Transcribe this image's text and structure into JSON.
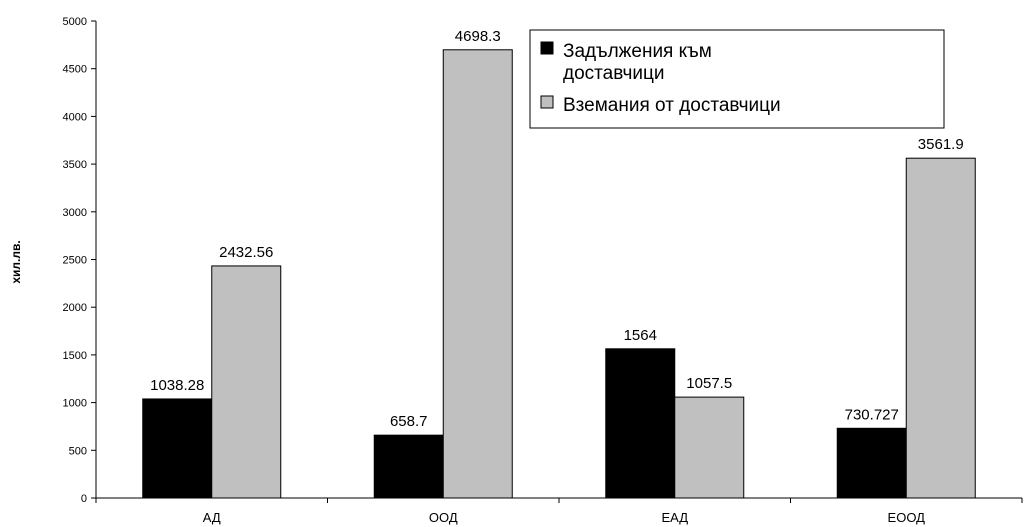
{
  "chart_data": {
    "type": "bar",
    "categories": [
      "АД",
      "ООД",
      "ЕАД",
      "ЕООД"
    ],
    "series": [
      {
        "name_lines": [
          "Задължения към",
          "доставчици"
        ],
        "values": [
          1038.28,
          658.7,
          1564,
          730.727
        ],
        "labels": [
          "1038.28",
          "658.7",
          "1564",
          "730.727"
        ],
        "color": "#000000"
      },
      {
        "name_lines": [
          "Вземания от доставчици"
        ],
        "values": [
          2432.56,
          4698.3,
          1057.5,
          3561.9
        ],
        "labels": [
          "2432.56",
          "4698.3",
          "1057.5",
          "3561.9"
        ],
        "color": "#c0c0c0"
      }
    ],
    "title": "",
    "xlabel": "",
    "ylabel": "хил.лв.",
    "ylim": [
      0,
      5000
    ],
    "yticks": [
      0,
      500,
      1000,
      1500,
      2000,
      2500,
      3000,
      3500,
      4000,
      4500,
      5000
    ],
    "grid": false,
    "legend": "top-right"
  }
}
